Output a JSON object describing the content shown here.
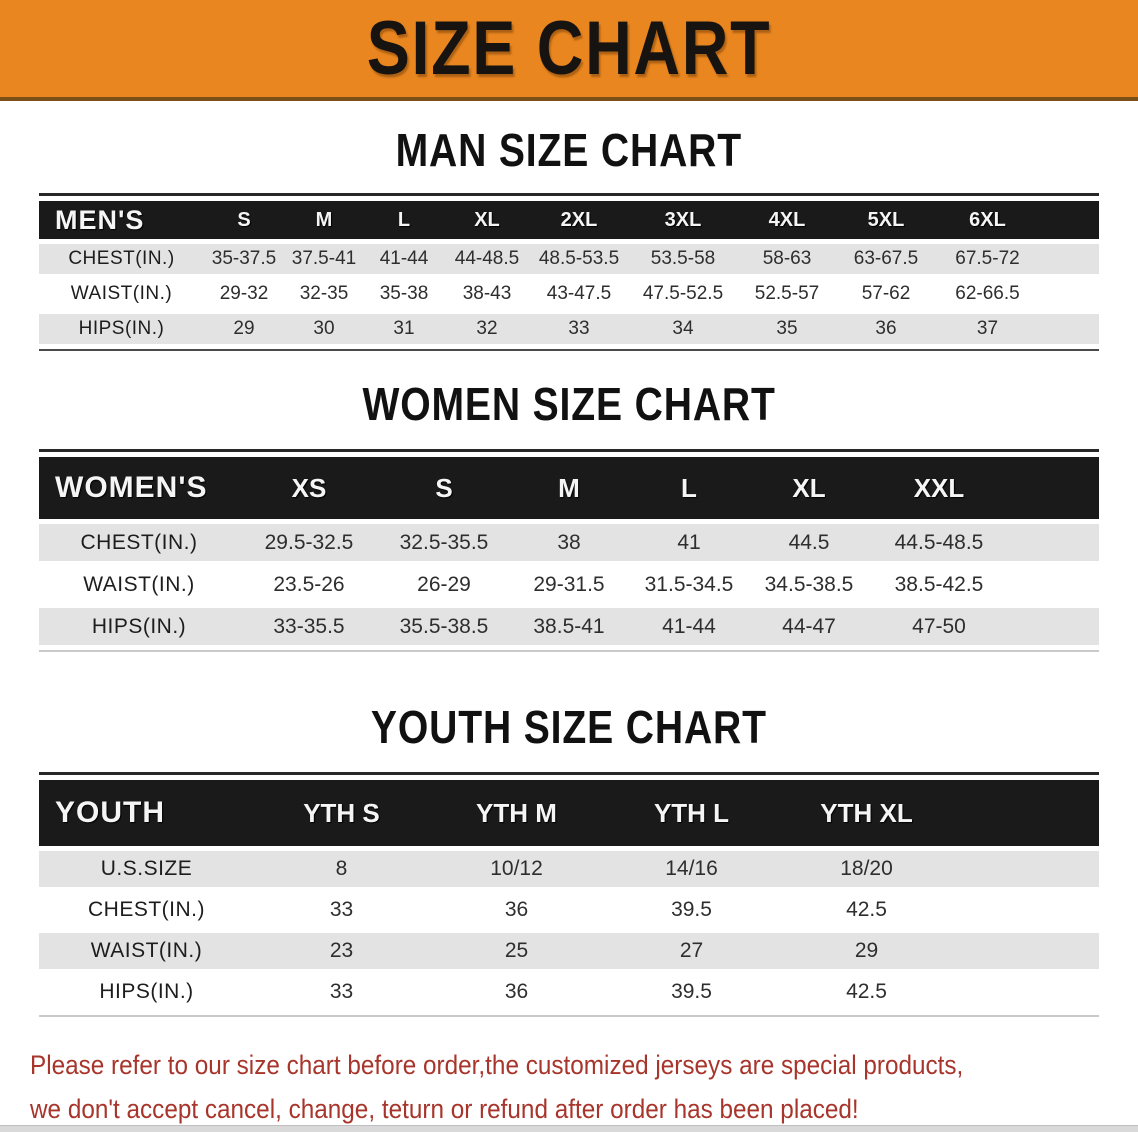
{
  "colors": {
    "banner_bg": "#e9861f",
    "header_bar": "#1a1a1a",
    "row_stripe": "#e3e3e3",
    "notice_red": "#a8352b"
  },
  "banner": {
    "title": "SIZE CHART"
  },
  "sections": [
    {
      "id": "men",
      "title": "MAN SIZE CHART",
      "table": {
        "label": "MEN'S",
        "columns": [
          "S",
          "M",
          "L",
          "XL",
          "2XL",
          "3XL",
          "4XL",
          "5XL",
          "6XL"
        ],
        "rows": [
          {
            "label": "CHEST(IN.)",
            "values": [
              "35-37.5",
              "37.5-41",
              "41-44",
              "44-48.5",
              "48.5-53.5",
              "53.5-58",
              "58-63",
              "63-67.5",
              "67.5-72"
            ]
          },
          {
            "label": "WAIST(IN.)",
            "values": [
              "29-32",
              "32-35",
              "35-38",
              "38-43",
              "43-47.5",
              "47.5-52.5",
              "52.5-57",
              "57-62",
              "62-66.5"
            ]
          },
          {
            "label": "HIPS(IN.)",
            "values": [
              "29",
              "30",
              "31",
              "32",
              "33",
              "34",
              "35",
              "36",
              "37"
            ]
          }
        ]
      }
    },
    {
      "id": "women",
      "title": "WOMEN SIZE CHART",
      "table": {
        "label": "WOMEN'S",
        "columns": [
          "XS",
          "S",
          "M",
          "L",
          "XL",
          "XXL"
        ],
        "rows": [
          {
            "label": "CHEST(IN.)",
            "values": [
              "29.5-32.5",
              "32.5-35.5",
              "38",
              "41",
              "44.5",
              "44.5-48.5"
            ]
          },
          {
            "label": "WAIST(IN.)",
            "values": [
              "23.5-26",
              "26-29",
              "29-31.5",
              "31.5-34.5",
              "34.5-38.5",
              "38.5-42.5"
            ]
          },
          {
            "label": "HIPS(IN.)",
            "values": [
              "33-35.5",
              "35.5-38.5",
              "38.5-41",
              "41-44",
              "44-47",
              "47-50"
            ]
          }
        ]
      }
    },
    {
      "id": "youth",
      "title": "YOUTH SIZE CHART",
      "table": {
        "label": "YOUTH",
        "columns": [
          "YTH S",
          "YTH M",
          "YTH L",
          "YTH XL"
        ],
        "rows": [
          {
            "label": "U.S.SIZE",
            "values": [
              "8",
              "10/12",
              "14/16",
              "18/20"
            ]
          },
          {
            "label": "CHEST(IN.)",
            "values": [
              "33",
              "36",
              "39.5",
              "42.5"
            ]
          },
          {
            "label": "WAIST(IN.)",
            "values": [
              "23",
              "25",
              "27",
              "29"
            ]
          },
          {
            "label": "HIPS(IN.)",
            "values": [
              "33",
              "36",
              "39.5",
              "42.5"
            ]
          }
        ]
      }
    }
  ],
  "notice": {
    "line1": "Please refer to our size chart before order,the customized jerseys are special products,",
    "line2": "we don't accept cancel, change, teturn or refund after order has been placed!"
  }
}
